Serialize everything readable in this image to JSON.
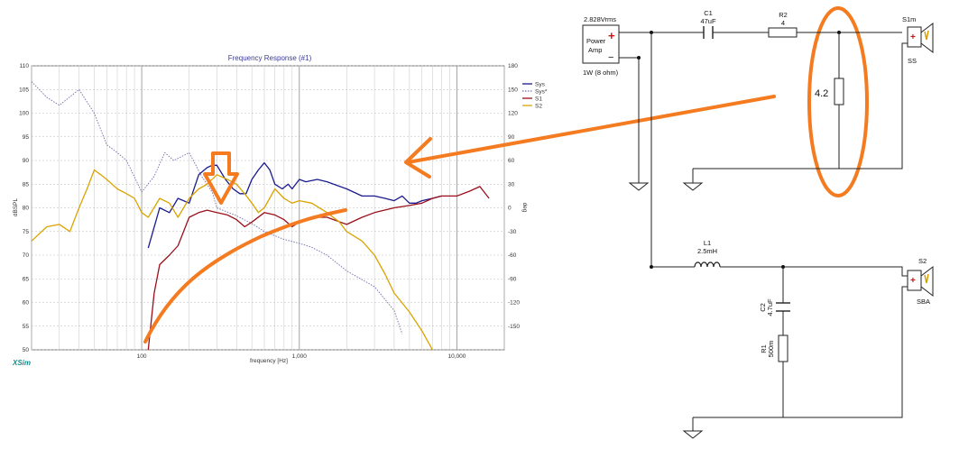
{
  "chart_data": {
    "type": "line",
    "title": "Frequency Response (#1)",
    "xlabel": "frequency [Hz]",
    "ylabel": "dBSPL",
    "y2label": "deg",
    "xscale": "log",
    "xlim": [
      20,
      20000
    ],
    "ylim": [
      50,
      110
    ],
    "y2lim": [
      -180,
      180
    ],
    "x_tick_labels": [
      "100",
      "1,000",
      "10,000"
    ],
    "x_tick_values": [
      100,
      1000,
      10000
    ],
    "y_ticks": [
      50,
      55,
      60,
      65,
      70,
      75,
      80,
      85,
      90,
      95,
      100,
      105,
      110
    ],
    "y2_ticks": [
      -150,
      -120,
      -90,
      -60,
      -30,
      0,
      30,
      60,
      90,
      120,
      150,
      180
    ],
    "grid": true,
    "legend_position": "top-right",
    "series": [
      {
        "name": "Sys",
        "color": "#1a1a8c",
        "axis": "left",
        "style": "solid",
        "x": [
          110,
          130,
          150,
          170,
          200,
          230,
          260,
          280,
          300,
          340,
          380,
          420,
          460,
          500,
          550,
          600,
          650,
          700,
          780,
          850,
          900,
          1000,
          1100,
          1300,
          1500,
          2000,
          2500,
          3000,
          3500,
          4000,
          4500,
          5000,
          5500,
          6000,
          7000,
          8000
        ],
        "y": [
          71.5,
          80,
          79,
          82,
          81,
          87,
          88.5,
          89,
          89,
          86,
          84,
          83,
          83,
          86,
          88,
          89.5,
          88,
          85,
          84,
          85,
          84,
          86,
          85.5,
          86,
          85.5,
          84,
          82.5,
          82.5,
          82,
          81.5,
          82.5,
          81,
          81,
          81.5,
          82,
          82.5
        ]
      },
      {
        "name": "Sys*",
        "color": "#6a6ab0",
        "axis": "right",
        "style": "dotted",
        "x": [
          20,
          25,
          30,
          40,
          50,
          60,
          70,
          80,
          100,
          120,
          140,
          160,
          200,
          240,
          280,
          300,
          400,
          500,
          600,
          800,
          1000,
          1200,
          1500,
          2000,
          3000,
          4000,
          4500
        ],
        "y": [
          160,
          140,
          130,
          150,
          120,
          80,
          70,
          60,
          20,
          40,
          70,
          60,
          70,
          40,
          20,
          0,
          -10,
          -20,
          -30,
          -40,
          -45,
          -50,
          -60,
          -80,
          -100,
          -130,
          -160
        ]
      },
      {
        "name": "S1",
        "color": "#9a0f1a",
        "axis": "left",
        "style": "solid",
        "x": [
          110,
          120,
          130,
          150,
          170,
          200,
          230,
          260,
          300,
          350,
          400,
          450,
          500,
          600,
          700,
          800,
          900,
          1000,
          1200,
          1500,
          2000,
          2500,
          3000,
          4000,
          5000,
          6000,
          7000,
          8000,
          10000,
          12000,
          14000,
          16000
        ],
        "y": [
          50,
          62,
          68,
          70,
          72,
          78,
          79,
          79.5,
          79,
          78.5,
          77.5,
          76,
          77,
          79,
          78.5,
          77.5,
          76,
          77,
          78,
          78,
          76.5,
          78,
          79,
          80,
          80.5,
          81,
          82,
          82.5,
          82.5,
          83.5,
          84.5,
          82
        ]
      },
      {
        "name": "S2",
        "color": "#d9a400",
        "axis": "left",
        "style": "solid",
        "x": [
          20,
          25,
          30,
          35,
          40,
          45,
          50,
          55,
          60,
          70,
          80,
          90,
          100,
          110,
          130,
          150,
          170,
          200,
          230,
          260,
          300,
          350,
          400,
          450,
          500,
          550,
          600,
          700,
          800,
          900,
          1000,
          1200,
          1500,
          1800,
          2000,
          2500,
          3000,
          3500,
          4000,
          5000,
          6000,
          7000
        ],
        "y": [
          73,
          76,
          76.5,
          75,
          80,
          84,
          88,
          87,
          86,
          84,
          83,
          82,
          79,
          78,
          82,
          81,
          78,
          82,
          84,
          85,
          87,
          86,
          85,
          83,
          81,
          79,
          80,
          84,
          82,
          81,
          81.5,
          81,
          79,
          77,
          75,
          73,
          70,
          66,
          62,
          58,
          54,
          50
        ]
      }
    ]
  },
  "brand": "XSim",
  "annotations": {
    "ellipse_label": "4.2"
  },
  "circuit": {
    "source_voltage": "2.828Vrms",
    "amp_label_line1": "Power",
    "amp_label_line2": "Amp",
    "amp_plus": "+",
    "amp_minus": "−",
    "amp_rating": "1W (8 ohm)",
    "c1_name": "C1",
    "c1_value": "47uF",
    "r2_name": "R2",
    "r2_value": "4",
    "s1_name": "S1m",
    "s1_sub": "SS",
    "l1_name": "L1",
    "l1_value": "2.5mH",
    "s2_name": "S2",
    "s2_sub": "SBA",
    "c2_name": "C2",
    "c2_value": "4.7uF",
    "r1_name": "R1",
    "r1_value": "500m",
    "driver_plus": "+",
    "driver_minus": "−"
  },
  "colors": {
    "annotation": "#f47b20",
    "sys": "#1a1a8c",
    "sys_star": "#6a6ab0",
    "s1": "#9a0f1a",
    "s2": "#d9a400",
    "grid": "#c8c8c8"
  }
}
